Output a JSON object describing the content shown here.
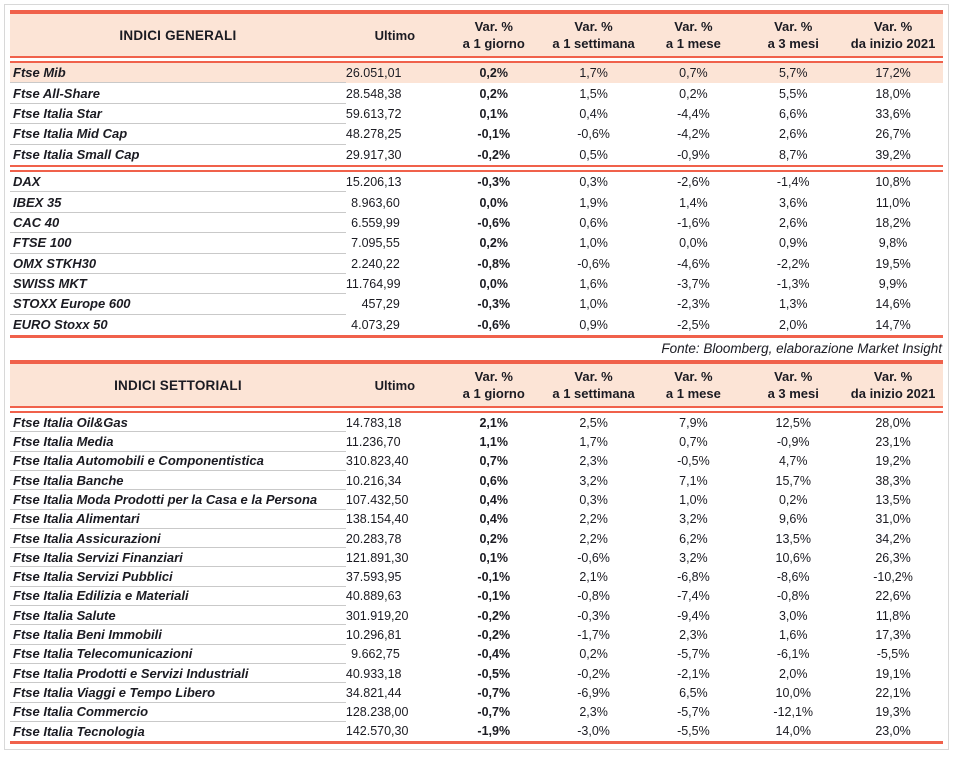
{
  "page": {
    "colors": {
      "accent": "#F0614B",
      "header_bg": "#FCE4D6",
      "highlight_row_bg": "#FCE4D6",
      "row_divider": "#C9C9C9",
      "text": "#1B1B22"
    },
    "tables": [
      {
        "title": "INDICI GENERALI",
        "ultimo_label": "Ultimo",
        "var_columns": [
          {
            "line1": "Var. %",
            "line2": "a 1 giorno"
          },
          {
            "line1": "Var. %",
            "line2": "a 1 settimana"
          },
          {
            "line1": "Var. %",
            "line2": "a 1 mese"
          },
          {
            "line1": "Var. %",
            "line2": "a 3 mesi"
          },
          {
            "line1": "Var. %",
            "line2": "da inizio 2021"
          }
        ],
        "groups": [
          {
            "highlight_first_row": true,
            "rows": [
              {
                "name": "Ftse Mib",
                "values": [
                  "26.051,01",
                  "0,2%",
                  "1,7%",
                  "0,7%",
                  "5,7%",
                  "17,2%"
                ]
              },
              {
                "name": "Ftse All-Share",
                "values": [
                  "28.548,38",
                  "0,2%",
                  "1,5%",
                  "0,2%",
                  "5,5%",
                  "18,0%"
                ]
              },
              {
                "name": "Ftse Italia Star",
                "values": [
                  "59.613,72",
                  "0,1%",
                  "0,4%",
                  "-4,4%",
                  "6,6%",
                  "33,6%"
                ]
              },
              {
                "name": "Ftse Italia Mid Cap",
                "values": [
                  "48.278,25",
                  "-0,1%",
                  "-0,6%",
                  "-4,2%",
                  "2,6%",
                  "26,7%"
                ]
              },
              {
                "name": "Ftse Italia Small Cap",
                "values": [
                  "29.917,30",
                  "-0,2%",
                  "0,5%",
                  "-0,9%",
                  "8,7%",
                  "39,2%"
                ]
              }
            ]
          },
          {
            "highlight_first_row": false,
            "rows": [
              {
                "name": "DAX",
                "values": [
                  "15.206,13",
                  "-0,3%",
                  "0,3%",
                  "-2,6%",
                  "-1,4%",
                  "10,8%"
                ]
              },
              {
                "name": "IBEX 35",
                "values": [
                  "8.963,60",
                  "0,0%",
                  "1,9%",
                  "1,4%",
                  "3,6%",
                  "11,0%"
                ]
              },
              {
                "name": "CAC 40",
                "values": [
                  "6.559,99",
                  "-0,6%",
                  "0,6%",
                  "-1,6%",
                  "2,6%",
                  "18,2%"
                ]
              },
              {
                "name": "FTSE 100",
                "values": [
                  "7.095,55",
                  "0,2%",
                  "1,0%",
                  "0,0%",
                  "0,9%",
                  "9,8%"
                ]
              },
              {
                "name": "OMX STKH30",
                "values": [
                  "2.240,22",
                  "-0,8%",
                  "-0,6%",
                  "-4,6%",
                  "-2,2%",
                  "19,5%"
                ]
              },
              {
                "name": "SWISS MKT",
                "values": [
                  "11.764,99",
                  "0,0%",
                  "1,6%",
                  "-3,7%",
                  "-1,3%",
                  "9,9%"
                ]
              },
              {
                "name": "STOXX Europe 600",
                "values": [
                  "457,29",
                  "-0,3%",
                  "1,0%",
                  "-2,3%",
                  "1,3%",
                  "14,6%"
                ]
              },
              {
                "name": "EURO Stoxx 50",
                "values": [
                  "4.073,29",
                  "-0,6%",
                  "0,9%",
                  "-2,5%",
                  "2,0%",
                  "14,7%"
                ]
              }
            ]
          }
        ],
        "source": "Fonte: Bloomberg, elaborazione Market Insight"
      },
      {
        "title": "INDICI SETTORIALI",
        "ultimo_label": "Ultimo",
        "var_columns": [
          {
            "line1": "Var. %",
            "line2": "a 1 giorno"
          },
          {
            "line1": "Var. %",
            "line2": "a 1 settimana"
          },
          {
            "line1": "Var. %",
            "line2": "a 1 mese"
          },
          {
            "line1": "Var. %",
            "line2": "a 3 mesi"
          },
          {
            "line1": "Var. %",
            "line2": "da inizio 2021"
          }
        ],
        "groups": [
          {
            "highlight_first_row": false,
            "rows": [
              {
                "name": "Ftse Italia Oil&Gas",
                "values": [
                  "14.783,18",
                  "2,1%",
                  "2,5%",
                  "7,9%",
                  "12,5%",
                  "28,0%"
                ]
              },
              {
                "name": "Ftse Italia Media",
                "values": [
                  "11.236,70",
                  "1,1%",
                  "1,7%",
                  "0,7%",
                  "-0,9%",
                  "23,1%"
                ]
              },
              {
                "name": "Ftse Italia Automobili e Componentistica",
                "values": [
                  "310.823,40",
                  "0,7%",
                  "2,3%",
                  "-0,5%",
                  "4,7%",
                  "19,2%"
                ]
              },
              {
                "name": "Ftse Italia Banche",
                "values": [
                  "10.216,34",
                  "0,6%",
                  "3,2%",
                  "7,1%",
                  "15,7%",
                  "38,3%"
                ]
              },
              {
                "name": "Ftse Italia Moda Prodotti per la Casa e la Persona",
                "values": [
                  "107.432,50",
                  "0,4%",
                  "0,3%",
                  "1,0%",
                  "0,2%",
                  "13,5%"
                ]
              },
              {
                "name": "Ftse Italia Alimentari",
                "values": [
                  "138.154,40",
                  "0,4%",
                  "2,2%",
                  "3,2%",
                  "9,6%",
                  "31,0%"
                ]
              },
              {
                "name": "Ftse Italia Assicurazioni",
                "values": [
                  "20.283,78",
                  "0,2%",
                  "2,2%",
                  "6,2%",
                  "13,5%",
                  "34,2%"
                ]
              },
              {
                "name": "Ftse Italia Servizi Finanziari",
                "values": [
                  "121.891,30",
                  "0,1%",
                  "-0,6%",
                  "3,2%",
                  "10,6%",
                  "26,3%"
                ]
              },
              {
                "name": "Ftse Italia Servizi Pubblici",
                "values": [
                  "37.593,95",
                  "-0,1%",
                  "2,1%",
                  "-6,8%",
                  "-8,6%",
                  "-10,2%"
                ]
              },
              {
                "name": "Ftse Italia Edilizia e Materiali",
                "values": [
                  "40.889,63",
                  "-0,1%",
                  "-0,8%",
                  "-7,4%",
                  "-0,8%",
                  "22,6%"
                ]
              },
              {
                "name": "Ftse Italia Salute",
                "values": [
                  "301.919,20",
                  "-0,2%",
                  "-0,3%",
                  "-9,4%",
                  "3,0%",
                  "11,8%"
                ]
              },
              {
                "name": "Ftse Italia Beni Immobili",
                "values": [
                  "10.296,81",
                  "-0,2%",
                  "-1,7%",
                  "2,3%",
                  "1,6%",
                  "17,3%"
                ]
              },
              {
                "name": "Ftse Italia Telecomunicazioni",
                "values": [
                  "9.662,75",
                  "-0,4%",
                  "0,2%",
                  "-5,7%",
                  "-6,1%",
                  "-5,5%"
                ]
              },
              {
                "name": "Ftse Italia Prodotti e Servizi Industriali",
                "values": [
                  "40.933,18",
                  "-0,5%",
                  "-0,2%",
                  "-2,1%",
                  "2,0%",
                  "19,1%"
                ]
              },
              {
                "name": "Ftse Italia Viaggi e Tempo Libero",
                "values": [
                  "34.821,44",
                  "-0,7%",
                  "-6,9%",
                  "6,5%",
                  "10,0%",
                  "22,1%"
                ]
              },
              {
                "name": "Ftse Italia Commercio",
                "values": [
                  "128.238,00",
                  "-0,7%",
                  "2,3%",
                  "-5,7%",
                  "-12,1%",
                  "19,3%"
                ]
              },
              {
                "name": "Ftse Italia Tecnologia",
                "values": [
                  "142.570,30",
                  "-1,9%",
                  "-3,0%",
                  "-5,5%",
                  "14,0%",
                  "23,0%"
                ]
              }
            ]
          }
        ],
        "source": "Fonte: Bloomberg, elaborazione Market Insight"
      }
    ]
  }
}
